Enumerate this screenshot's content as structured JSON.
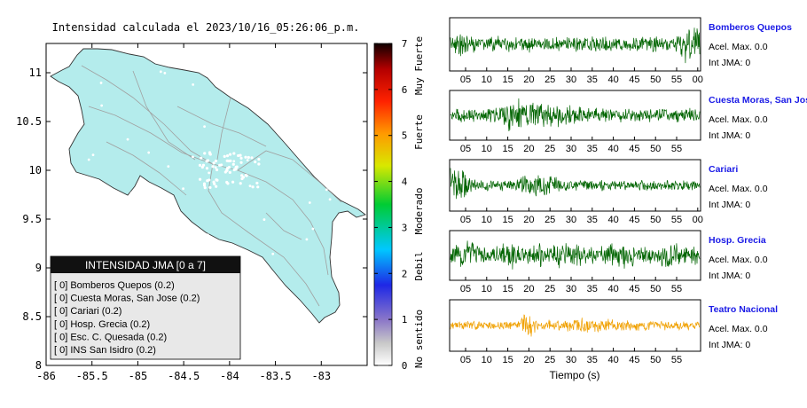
{
  "chart_data": [
    {
      "type": "map",
      "title": "Intensidad calculada el 2023/10/16_05:26:06_p.m.",
      "x_ticks": [
        -86,
        -85.5,
        -85,
        -84.5,
        -84,
        -83.5,
        -83
      ],
      "y_ticks": [
        8,
        8.5,
        9,
        9.5,
        10,
        10.5,
        11
      ],
      "xlim": [
        -86,
        -82.5
      ],
      "ylim": [
        8,
        11.3
      ],
      "land_color": "#b4ecec",
      "legend": {
        "title": "INTENSIDAD JMA [0 a 7]",
        "entries": [
          "[ 0]  Bomberos Quepos (0.2)",
          "[ 0]  Cuesta Moras, San Jose (0.2)",
          "[ 0]  Cariari (0.2)",
          "[ 0]  Hosp. Grecia (0.2)",
          "[ 0]  Esc. C. Quesada (0.2)",
          "[ 0]  INS San Isidro (0.2)"
        ]
      },
      "colorbar": {
        "range": [
          0,
          7
        ],
        "ticks": [
          0,
          1,
          2,
          3,
          4,
          5,
          6,
          7
        ],
        "labels": [
          "No sentido",
          "Debil",
          "Moderado",
          "Fuerte",
          "Muy Fuerte"
        ]
      }
    },
    {
      "type": "line",
      "xlabel": "Tiempo (s)",
      "series": [
        {
          "name": "Bomberos Quepos",
          "accel": "Acel. Max. 0.0",
          "intensity": "Int JMA: 0",
          "color": "#006400",
          "ticks": [
            "05",
            "10",
            "15",
            "20",
            "25",
            "30",
            "35",
            "40",
            "45",
            "50",
            "55",
            "00"
          ]
        },
        {
          "name": "Cuesta Moras, San Jose",
          "accel": "Acel. Max. 0.0",
          "intensity": "Int JMA: 0",
          "color": "#006400",
          "ticks": [
            "05",
            "10",
            "15",
            "20",
            "25",
            "30",
            "35",
            "40",
            "45",
            "50",
            "55"
          ]
        },
        {
          "name": "Cariari",
          "accel": "Acel. Max. 0.0",
          "intensity": "Int JMA: 0",
          "color": "#006400",
          "ticks": [
            "05",
            "10",
            "15",
            "20",
            "25",
            "30",
            "35",
            "40",
            "45",
            "50",
            "55",
            "00"
          ]
        },
        {
          "name": "Hosp. Grecia",
          "accel": "Acel. Max. 0.0",
          "intensity": "Int JMA: 0",
          "color": "#006400",
          "ticks": [
            "05",
            "10",
            "15",
            "20",
            "25",
            "30",
            "35",
            "40",
            "45",
            "50",
            "55"
          ]
        },
        {
          "name": "Teatro Nacional",
          "accel": "Acel. Max. 0.0",
          "intensity": "Int JMA: 0",
          "color": "#f0a000",
          "ticks": [
            "05",
            "10",
            "15",
            "20",
            "25",
            "30",
            "35",
            "40",
            "45",
            "50",
            "55"
          ]
        }
      ]
    }
  ]
}
